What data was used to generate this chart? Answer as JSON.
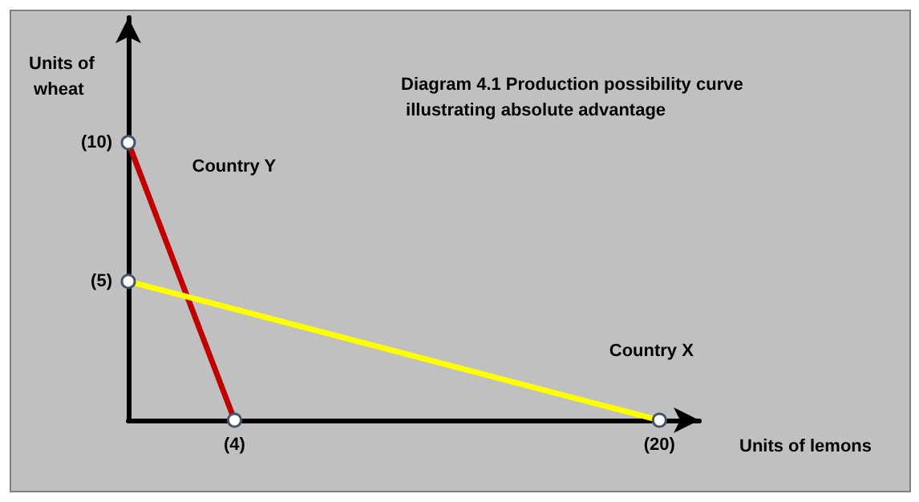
{
  "chart_data": {
    "type": "line",
    "title": "Diagram 4.1 Production possibility curve illustrating absolute advantage",
    "xlabel": "Units of lemons",
    "ylabel": "Units of wheat",
    "series": [
      {
        "name": "Country Y",
        "color": "#c00000",
        "x": [
          0,
          4
        ],
        "values": [
          10,
          0
        ]
      },
      {
        "name": "Country X",
        "color": "#ffff00",
        "x": [
          0,
          20
        ],
        "values": [
          5,
          0
        ]
      }
    ],
    "xlim": [
      0,
      21.5
    ],
    "ylim": [
      0,
      14.5
    ],
    "xticks": [
      {
        "value": 4,
        "label": "(4)"
      },
      {
        "value": 20,
        "label": "(20)"
      }
    ],
    "yticks": [
      {
        "value": 5,
        "label": "(5)"
      },
      {
        "value": 10,
        "label": "(10)"
      }
    ],
    "grid": false,
    "legend": false,
    "marker": "circle",
    "line_style": "solid"
  }
}
